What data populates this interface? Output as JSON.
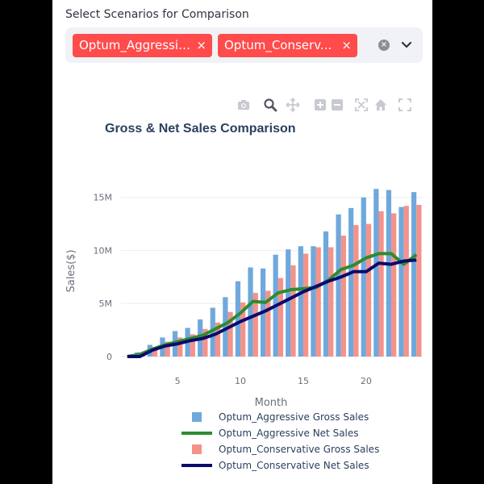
{
  "multiselect": {
    "label": "Select Scenarios for Comparison",
    "selected": [
      "Optum_Aggressive",
      "Optum_Conservative"
    ],
    "chip_display": [
      "Optum_Aggressive",
      "Optum_Conserv..."
    ],
    "remove_glyph": "×",
    "clear_glyph": "×"
  },
  "modebar": [
    "camera-icon",
    "zoom-icon",
    "pan-icon",
    "zoom-in-icon",
    "zoom-out-icon",
    "autoscale-icon",
    "home-icon",
    "fullscreen-icon"
  ],
  "colors": {
    "aggressive_gross": "#6fa8dc",
    "aggressive_net": "#2e8b2e",
    "conservative_gross": "#f4928a",
    "conservative_net": "#0a0a6e",
    "chip": "#ff4b4b"
  },
  "chart_data": {
    "type": "bar",
    "title": "Gross & Net Sales Comparison",
    "xlabel": "Month",
    "ylabel": "Sales($)",
    "x": [
      1,
      2,
      3,
      4,
      5,
      6,
      7,
      8,
      9,
      10,
      11,
      12,
      13,
      14,
      15,
      16,
      17,
      18,
      19,
      20,
      21,
      22,
      23,
      24
    ],
    "xticks": [
      5,
      10,
      15,
      20
    ],
    "yticks": [
      0,
      5000000,
      10000000,
      15000000
    ],
    "ytick_labels": [
      "0",
      "5M",
      "10M",
      "15M"
    ],
    "ylim": [
      0,
      16500000
    ],
    "xlim": [
      0.5,
      24.5
    ],
    "grid": true,
    "legend_position": "bottom",
    "series": [
      {
        "name": "Optum_Aggressive Gross Sales",
        "kind": "bar",
        "values": [
          0,
          400000,
          1100000,
          1800000,
          2400000,
          2700000,
          3500000,
          4600000,
          5600000,
          7100000,
          8400000,
          8300000,
          9600000,
          10100000,
          10400000,
          10400000,
          11800000,
          13400000,
          14000000,
          15000000,
          15800000,
          15700000,
          14100000,
          15500000
        ]
      },
      {
        "name": "Optum_Aggressive Net Sales",
        "kind": "line",
        "values": [
          0,
          200000,
          700000,
          1100000,
          1400000,
          1700000,
          2000000,
          2600000,
          3200000,
          4100000,
          5200000,
          5100000,
          6000000,
          6300000,
          6400000,
          6500000,
          7200000,
          8200000,
          8600000,
          9300000,
          9700000,
          9700000,
          8700000,
          9600000
        ]
      },
      {
        "name": "Optum_Conservative Gross Sales",
        "kind": "bar",
        "values": [
          0,
          200000,
          900000,
          1400000,
          1800000,
          2100000,
          2600000,
          3200000,
          4200000,
          5100000,
          6000000,
          6200000,
          7400000,
          8600000,
          9700000,
          10300000,
          10300000,
          11400000,
          12400000,
          12500000,
          13700000,
          13500000,
          14200000,
          14300000
        ]
      },
      {
        "name": "Optum_Conservative Net Sales",
        "kind": "line",
        "values": [
          0,
          0,
          600000,
          1000000,
          1200000,
          1500000,
          1700000,
          2100000,
          2700000,
          3300000,
          3800000,
          4300000,
          4900000,
          5500000,
          6100000,
          6600000,
          7100000,
          7500000,
          8000000,
          8000000,
          8800000,
          8700000,
          9000000,
          9100000
        ]
      }
    ]
  }
}
